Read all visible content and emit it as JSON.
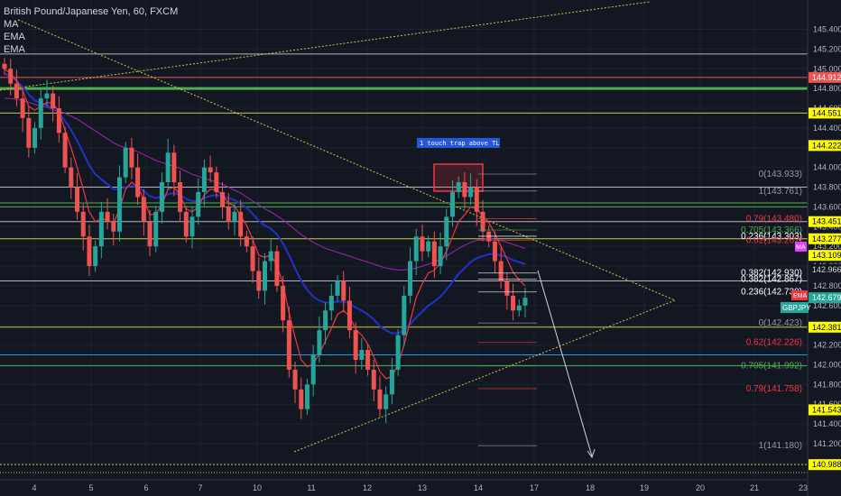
{
  "header": {
    "symbol_title": "British Pound/Japanese Yen, 60, FXCM",
    "indicators": [
      "MA",
      "EMA",
      "EMA"
    ]
  },
  "colors": {
    "background": "#131722",
    "bull": "#26a69a",
    "bear": "#ef5350",
    "ema_fast": "#f23645",
    "ema_slow": "#2032c8",
    "ma": "#9c27b0",
    "yellow_line": "#c9c94a",
    "green_line": "#4caf50",
    "blue_line": "#2196f3",
    "white_line": "#b2b5be"
  },
  "annotation": {
    "text": "1 touch trap above TL"
  },
  "badges": {
    "ema": "EMA",
    "ma": "MA",
    "symbol": "GBPJPY"
  },
  "chart_data": {
    "type": "candlestick",
    "x_ticks": [
      "4",
      "5",
      "6",
      "7",
      "10",
      "11",
      "12",
      "13",
      "14",
      "17",
      "18",
      "19",
      "20",
      "21",
      "23"
    ],
    "y_ticks": [
      "145.400",
      "145.200",
      "145.000",
      "144.800",
      "144.600",
      "144.400",
      "144.200",
      "144.000",
      "143.800",
      "143.600",
      "143.400",
      "143.200",
      "143.000",
      "142.800",
      "142.600",
      "142.400",
      "142.200",
      "142.000",
      "141.800",
      "141.600",
      "141.400",
      "141.200",
      "141.000"
    ],
    "ylim": [
      140.88,
      145.56
    ],
    "price_labels": [
      {
        "text": "144.912",
        "value": 144.912,
        "bg": "#ef5350",
        "fg": "#ffffff"
      },
      {
        "text": "144.551",
        "value": 144.551,
        "bg": "#ffff00",
        "fg": "#000000"
      },
      {
        "text": "144.222",
        "value": 144.222,
        "bg": "#ffff00",
        "fg": "#000000"
      },
      {
        "text": "143.451",
        "value": 143.451,
        "bg": "#ffff00",
        "fg": "#000000"
      },
      {
        "text": "143.277",
        "value": 143.277,
        "bg": "#ffff00",
        "fg": "#000000"
      },
      {
        "text": "143.109",
        "value": 143.109,
        "bg": "#ffff00",
        "fg": "#000000"
      },
      {
        "text": "142.966",
        "value": 142.966,
        "bg": "#131722",
        "fg": "#d1d4dc"
      },
      {
        "text": "142.679",
        "value": 142.679,
        "bg": "#26a69a",
        "fg": "#ffffff"
      },
      {
        "text": "142.381",
        "value": 142.381,
        "bg": "#ffff00",
        "fg": "#000000"
      },
      {
        "text": "141.543",
        "value": 141.543,
        "bg": "#ffff00",
        "fg": "#000000"
      },
      {
        "text": "140.988",
        "value": 140.988,
        "bg": "#ffff00",
        "fg": "#000000"
      }
    ],
    "horizontal_lines": [
      {
        "value": 145.15,
        "color": "#b2b5be"
      },
      {
        "value": 144.912,
        "color": "#ef5350"
      },
      {
        "value": 144.8,
        "color": "#4caf50",
        "width": 3
      },
      {
        "value": 144.551,
        "color": "#c9c94a"
      },
      {
        "value": 143.8,
        "color": "#b2b5be"
      },
      {
        "value": 143.64,
        "color": "#4caf50"
      },
      {
        "value": 143.6,
        "color": "#4caf50"
      },
      {
        "value": 143.451,
        "color": "#b2b5be"
      },
      {
        "value": 143.277,
        "color": "#c9c94a"
      },
      {
        "value": 142.85,
        "color": "#b2b5be"
      },
      {
        "value": 142.381,
        "color": "#c9c94a"
      },
      {
        "value": 142.1,
        "color": "#2196f3"
      },
      {
        "value": 141.99,
        "color": "#4caf50"
      },
      {
        "value": 140.988,
        "color": "#c9c94a",
        "dash": true
      }
    ],
    "fib_levels": [
      {
        "text": "0(143.933)",
        "value": 143.933,
        "color": "#9598a1"
      },
      {
        "text": "1(143.761)",
        "value": 143.761,
        "color": "#9598a1"
      },
      {
        "text": "0.79(143.480)",
        "value": 143.48,
        "color": "#f23645"
      },
      {
        "text": "0.705(143.366)",
        "value": 143.366,
        "color": "#4caf50"
      },
      {
        "text": "0.236(143.303)",
        "value": 143.303,
        "color": "#ffffff"
      },
      {
        "text": "0.62(143.262)",
        "value": 143.262,
        "color": "#f23645"
      },
      {
        "text": "0.382(142.930)",
        "value": 142.93,
        "color": "#ffffff"
      },
      {
        "text": "0.382(142.867)",
        "value": 142.867,
        "color": "#ffffff"
      },
      {
        "text": "0.236(142.738)",
        "value": 142.738,
        "color": "#ffffff"
      },
      {
        "text": "0(142.423)",
        "value": 142.423,
        "color": "#9598a1"
      },
      {
        "text": "0.62(142.226)",
        "value": 142.226,
        "color": "#f23645"
      },
      {
        "text": "0.705(141.992)",
        "value": 141.992,
        "color": "#4caf50"
      },
      {
        "text": "0.79(141.758)",
        "value": 141.758,
        "color": "#f23645"
      },
      {
        "text": "1(141.180)",
        "value": 141.18,
        "color": "#9598a1"
      }
    ],
    "candles_close": [
      145.0,
      144.85,
      144.7,
      144.5,
      144.2,
      144.4,
      144.7,
      144.75,
      144.6,
      144.35,
      144.0,
      143.8,
      143.55,
      143.3,
      143.0,
      143.2,
      143.55,
      143.45,
      143.35,
      143.9,
      144.2,
      144.0,
      143.7,
      143.45,
      143.2,
      143.55,
      143.85,
      144.15,
      143.85,
      143.55,
      143.3,
      143.5,
      143.75,
      144.0,
      143.95,
      143.75,
      143.6,
      143.45,
      143.55,
      143.3,
      143.2,
      142.95,
      142.75,
      143.05,
      143.15,
      142.8,
      142.45,
      141.95,
      141.75,
      141.55,
      141.8,
      142.1,
      142.35,
      142.55,
      142.7,
      142.85,
      142.65,
      142.35,
      142.05,
      142.15,
      141.95,
      141.75,
      141.55,
      141.7,
      141.95,
      142.3,
      142.7,
      143.05,
      143.3,
      143.15,
      143.25,
      143.0,
      143.2,
      143.5,
      143.75,
      143.85,
      143.7,
      143.8,
      143.55,
      143.35,
      143.25,
      143.05,
      142.85,
      142.7,
      142.55,
      142.6,
      142.68
    ],
    "ema_fast": [
      145.0,
      144.95,
      144.88,
      144.78,
      144.62,
      144.58,
      144.62,
      144.66,
      144.65,
      144.56,
      144.38,
      144.2,
      144.0,
      143.78,
      143.55,
      143.45,
      143.48,
      143.47,
      143.43,
      143.58,
      143.78,
      143.85,
      143.8,
      143.68,
      143.52,
      143.53,
      143.62,
      143.78,
      143.8,
      143.72,
      143.58,
      143.55,
      143.6,
      143.72,
      143.78,
      143.77,
      143.72,
      143.64,
      143.61,
      143.51,
      143.41,
      143.27,
      143.11,
      143.09,
      143.11,
      143.01,
      142.82,
      142.53,
      142.28,
      142.05,
      141.98,
      142.01,
      142.11,
      142.24,
      142.37,
      142.51,
      142.55,
      142.49,
      142.36,
      142.3,
      142.21,
      142.08,
      141.93,
      141.86,
      141.88,
      142.0,
      142.2,
      142.44,
      142.68,
      142.82,
      142.93,
      142.96,
      143.03,
      143.15,
      143.3,
      143.45,
      143.52,
      143.6,
      143.58,
      143.51,
      143.44,
      143.33,
      143.2,
      143.07,
      142.94,
      142.86,
      142.8
    ],
    "ema_slow": [
      144.95,
      144.92,
      144.88,
      144.82,
      144.74,
      144.68,
      144.65,
      144.63,
      144.6,
      144.55,
      144.47,
      144.38,
      144.27,
      144.15,
      144.02,
      143.93,
      143.88,
      143.83,
      143.78,
      143.78,
      143.8,
      143.81,
      143.8,
      143.76,
      143.71,
      143.69,
      143.7,
      143.73,
      143.74,
      143.72,
      143.68,
      143.66,
      143.66,
      143.69,
      143.71,
      143.72,
      143.71,
      143.69,
      143.67,
      143.63,
      143.59,
      143.53,
      143.46,
      143.41,
      143.38,
      143.32,
      143.23,
      143.11,
      142.98,
      142.85,
      142.76,
      142.69,
      142.65,
      142.63,
      142.63,
      142.64,
      142.64,
      142.62,
      142.58,
      142.55,
      142.51,
      142.46,
      142.39,
      142.35,
      142.32,
      142.32,
      142.35,
      142.41,
      142.48,
      142.54,
      142.6,
      142.64,
      142.69,
      142.76,
      142.84,
      142.92,
      142.98,
      143.04,
      143.08,
      143.1,
      143.12,
      143.12,
      143.11,
      143.09,
      143.06,
      143.04,
      143.02
    ],
    "ma": [
      144.7,
      144.7,
      144.69,
      144.68,
      144.66,
      144.64,
      144.62,
      144.61,
      144.59,
      144.57,
      144.55,
      144.52,
      144.49,
      144.45,
      144.41,
      144.37,
      144.33,
      144.29,
      144.25,
      144.22,
      144.2,
      144.18,
      144.16,
      144.13,
      144.1,
      144.07,
      144.05,
      144.03,
      144.01,
      143.99,
      143.96,
      143.93,
      143.91,
      143.89,
      143.87,
      143.85,
      143.83,
      143.8,
      143.77,
      143.74,
      143.7,
      143.66,
      143.62,
      143.58,
      143.55,
      143.51,
      143.47,
      143.42,
      143.37,
      143.32,
      143.28,
      143.24,
      143.21,
      143.18,
      143.16,
      143.14,
      143.12,
      143.1,
      143.08,
      143.06,
      143.04,
      143.02,
      143.0,
      142.98,
      142.97,
      142.96,
      142.96,
      142.97,
      142.98,
      143.0,
      143.02,
      143.04,
      143.07,
      143.1,
      143.14,
      143.18,
      143.21,
      143.24,
      143.26,
      143.27,
      143.28,
      143.27,
      143.26,
      143.24,
      143.22,
      143.2,
      143.18
    ]
  }
}
